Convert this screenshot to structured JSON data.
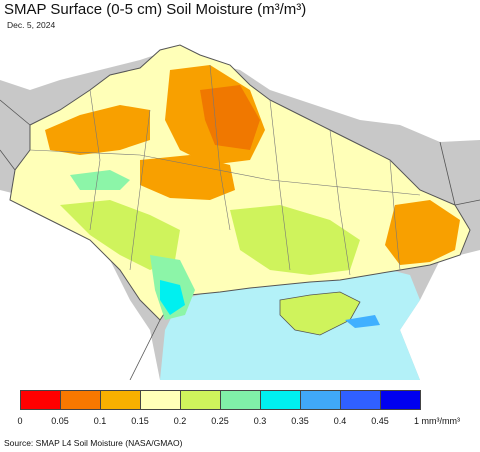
{
  "header": {
    "title": "SMAP Surface (0-5 cm) Soil Moisture (m³/m³)",
    "date": "Dec. 5, 2024"
  },
  "colors": {
    "sea": "#b3f1f8",
    "outside_land": "#ffffff",
    "background": "#c8c8c8",
    "border": "#555555",
    "dry_orange": "#f8a000",
    "dark_orange": "#f07800",
    "light_yellow": "#ffffb8",
    "lime": "#cff35c",
    "green": "#8cf5a8",
    "cyan": "#00f0f0",
    "blue": "#40b0ff"
  },
  "legend": {
    "bins": [
      {
        "color": "#ff0000"
      },
      {
        "color": "#f87800"
      },
      {
        "color": "#f8b000"
      },
      {
        "color": "#ffffb8"
      },
      {
        "color": "#cff35c"
      },
      {
        "color": "#80f0a8"
      },
      {
        "color": "#00f0f0"
      },
      {
        "color": "#40a8f8"
      },
      {
        "color": "#3060ff"
      },
      {
        "color": "#0000f0"
      }
    ],
    "ticks": [
      "0",
      "0.05",
      "0.1",
      "0.15",
      "0.2",
      "0.25",
      "0.3",
      "0.35",
      "0.4",
      "0.45"
    ],
    "unit": "1 mm³/mm³"
  },
  "footer": {
    "source": "Source: SMAP L4 Soil Moisture (NASA/GMAO)"
  }
}
